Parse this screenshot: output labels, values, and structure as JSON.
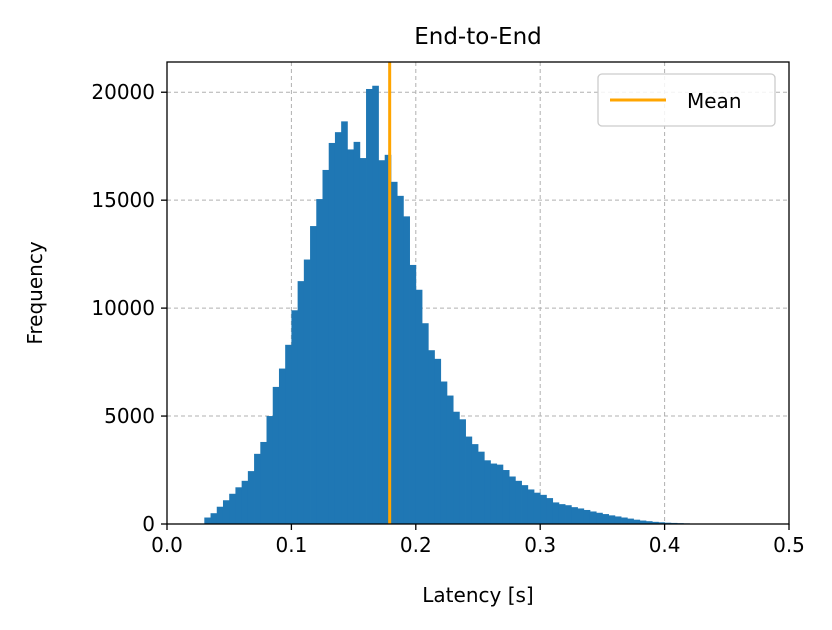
{
  "chart_data": {
    "type": "bar",
    "title": "End-to-End",
    "xlabel": "Latency [s]",
    "ylabel": "Frequency",
    "xlim": [
      0.0,
      0.5
    ],
    "ylim": [
      0,
      21400
    ],
    "xticks": [
      0.0,
      0.1,
      0.2,
      0.3,
      0.4,
      0.5
    ],
    "xtick_labels": [
      "0.0",
      "0.1",
      "0.2",
      "0.3",
      "0.4",
      "0.5"
    ],
    "yticks": [
      0,
      5000,
      10000,
      15000,
      20000
    ],
    "ytick_labels": [
      "0",
      "5000",
      "10000",
      "15000",
      "20000"
    ],
    "grid": true,
    "legend_position": "top-right",
    "bar_color": "#1f77b4",
    "bins": {
      "start": 0.0,
      "width": 0.005,
      "counts": [
        0,
        0,
        0,
        0,
        0,
        0,
        300,
        500,
        800,
        1100,
        1400,
        1700,
        2000,
        2450,
        3250,
        3800,
        5000,
        6350,
        7200,
        8300,
        9900,
        11250,
        12250,
        13800,
        15050,
        16400,
        17650,
        18150,
        18650,
        17350,
        17700,
        16950,
        20150,
        20300,
        16850,
        17100,
        15850,
        15200,
        14250,
        12000,
        10850,
        9300,
        8050,
        7650,
        6600,
        5950,
        5200,
        4850,
        4050,
        3700,
        3350,
        2950,
        2800,
        2750,
        2500,
        2200,
        2000,
        1800,
        1600,
        1450,
        1350,
        1200,
        1000,
        920,
        870,
        780,
        720,
        650,
        580,
        520,
        460,
        400,
        350,
        300,
        250,
        200,
        160,
        130,
        100,
        80,
        60,
        50,
        40,
        30,
        20,
        10,
        5,
        3,
        2,
        1,
        0,
        0,
        0,
        0,
        0,
        0,
        0,
        0,
        0,
        0
      ]
    },
    "series": [
      {
        "name": "Mean",
        "type": "vline",
        "x": 0.179,
        "color": "#ffa500"
      }
    ]
  }
}
